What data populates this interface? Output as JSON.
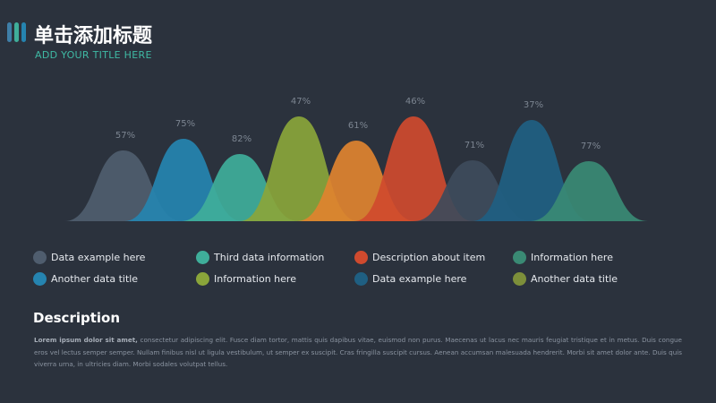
{
  "header": {
    "title": "单击添加标题",
    "subtitle": "ADD YOUR TITLE HERE"
  },
  "peaks": [
    {
      "label": "57%",
      "color": "#4f5d6e"
    },
    {
      "label": "75%",
      "color": "#2584b0"
    },
    {
      "label": "82%",
      "color": "#3fae9a"
    },
    {
      "label": "47%",
      "color": "#8aa53a"
    },
    {
      "label": "61%",
      "color": "#e0832f"
    },
    {
      "label": "46%",
      "color": "#cf4a2e"
    },
    {
      "label": "71%",
      "color": "#3e4b5b"
    },
    {
      "label": "37%",
      "color": "#1f5f82"
    },
    {
      "label": "77%",
      "color": "#3a8a74"
    }
  ],
  "legend": [
    {
      "name": "Data example here",
      "color": "#4f5d6e"
    },
    {
      "name": "Another data title",
      "color": "#2584b0"
    },
    {
      "name": "Third data information",
      "color": "#3fae9a"
    },
    {
      "name": "Information here",
      "color": "#8aa53a"
    },
    {
      "name": "Description about item",
      "color": "#cf4a2e"
    },
    {
      "name": "Data example here",
      "color": "#1f5f82"
    },
    {
      "name": "Information here",
      "color": "#3a8a74"
    },
    {
      "name": "Another data title",
      "color": "#7d8f3a"
    }
  ],
  "description": {
    "heading": "Description",
    "lead": "Lorem ipsum dolor sit amet,",
    "body": " consectetur adipiscing elit. Fusce diam tortor, mattis quis dapibus vitae, euismod non purus. Maecenas ut lacus nec mauris feugiat tristique et in metus. Duis congue eros vel lectus semper semper. Nullam finibus nisl ut ligula vestibulum, ut semper ex suscipit. Cras fringilla suscipit cursus. Aenean accumsan malesuada hendrerit. Morbi sit amet dolor ante. Duis quis viverra urna, in ultricies diam. Morbi sodales volutpat tellus."
  }
}
